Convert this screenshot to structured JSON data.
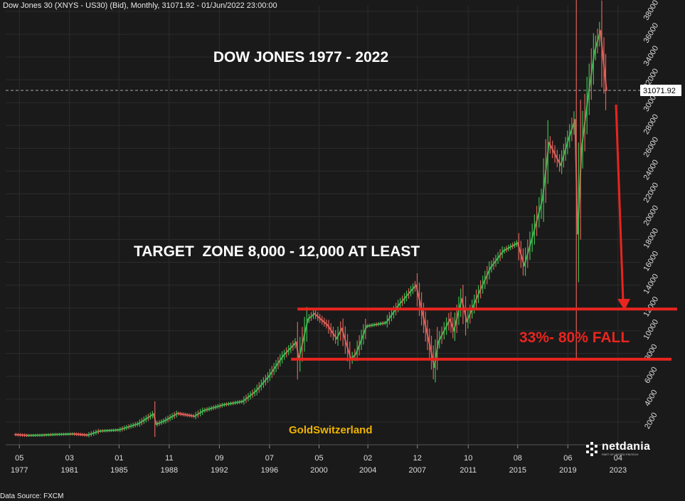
{
  "header": {
    "instrument": "Dow Jones 30 (XNYS - US30) (Bid), Monthly, 31071.92 - 01/Jun/2022 23:00:00"
  },
  "data_source": "Data Source: FXCM",
  "brand": {
    "name": "netdania",
    "tagline": "PART OF UNITED FINTECH"
  },
  "colors": {
    "background": "#1a1a1a",
    "up": "#3fb950",
    "down": "#e0605a",
    "annotation": "#e8251f",
    "brand_text": "#f0b400",
    "grid": "#2c2c2c"
  },
  "chart_data": {
    "type": "line",
    "title": "DOW JONES 1977 - 2022",
    "watermark": "GoldSwitzerland",
    "xlabel": "",
    "ylabel": "",
    "xlim": [
      1976.3,
      2025.0
    ],
    "ylim": [
      0,
      38500
    ],
    "y_ticks": [
      2000,
      4000,
      6000,
      8000,
      10000,
      12000,
      14000,
      16000,
      18000,
      20000,
      22000,
      24000,
      26000,
      28000,
      30000,
      32000,
      34000,
      36000,
      38000
    ],
    "y_axis_side": "right",
    "x_ticks": [
      {
        "x": 1977.35,
        "month": "05",
        "year": "1977"
      },
      {
        "x": 1981.2,
        "month": "03",
        "year": "1981"
      },
      {
        "x": 1985.0,
        "month": "01",
        "year": "1985"
      },
      {
        "x": 1988.85,
        "month": "11",
        "year": "1988"
      },
      {
        "x": 1992.7,
        "month": "09",
        "year": "1992"
      },
      {
        "x": 1996.55,
        "month": "07",
        "year": "1996"
      },
      {
        "x": 2000.35,
        "month": "05",
        "year": "2000"
      },
      {
        "x": 2004.1,
        "month": "02",
        "year": "2004"
      },
      {
        "x": 2007.9,
        "month": "12",
        "year": "2007"
      },
      {
        "x": 2011.8,
        "month": "10",
        "year": "2011"
      },
      {
        "x": 2015.6,
        "month": "08",
        "year": "2015"
      },
      {
        "x": 2019.45,
        "month": "06",
        "year": "2019"
      },
      {
        "x": 2023.3,
        "month": "04",
        "year": "2023"
      }
    ],
    "grid": true,
    "last_price": {
      "value": 31071.92,
      "label": "31071.92"
    },
    "series": [
      {
        "x": [
          1977.0,
          1978.0,
          1979.0,
          1980.0,
          1981.5,
          1982.6,
          1983.5,
          1985.0,
          1986.5,
          1987.65,
          1987.85,
          1988.5,
          1989.5,
          1990.8,
          1991.5,
          1993.0,
          1994.5,
          1995.5,
          1996.5,
          1997.6,
          1998.6,
          1998.8,
          1999.5,
          2000.0,
          2001.0,
          2001.7,
          2002.1,
          2002.8,
          2003.2,
          2004.0,
          2005.5,
          2006.5,
          2007.8,
          2008.3,
          2008.9,
          2009.2,
          2009.5,
          2010.4,
          2010.7,
          2011.3,
          2011.7,
          2012.5,
          2013.5,
          2014.5,
          2015.6,
          2016.1,
          2016.8,
          2017.5,
          2018.0,
          2018.9,
          2019.5,
          2020.0,
          2020.2,
          2020.5,
          2021.0,
          2021.5,
          2021.95,
          2022.15,
          2022.42
        ],
        "values": [
          900,
          820,
          840,
          900,
          950,
          850,
          1200,
          1300,
          1850,
          2700,
          1800,
          2100,
          2750,
          2500,
          3000,
          3500,
          3800,
          4700,
          6000,
          7800,
          9000,
          7500,
          11000,
          11500,
          10500,
          9300,
          10200,
          7500,
          8000,
          10400,
          10700,
          12300,
          14000,
          11500,
          8500,
          6800,
          9000,
          11000,
          10000,
          12800,
          10800,
          13000,
          15500,
          17000,
          17700,
          15700,
          18500,
          21500,
          26500,
          24500,
          26800,
          28500,
          18500,
          26000,
          30500,
          34500,
          36300,
          34000,
          31072
        ]
      }
    ],
    "annotations": {
      "target_zone": "TARGET  ZONE 8,000 - 12,000 AT LEAST",
      "fall": "33%- 80% FALL",
      "zone_upper": 11900,
      "zone_lower": 7500
    }
  }
}
